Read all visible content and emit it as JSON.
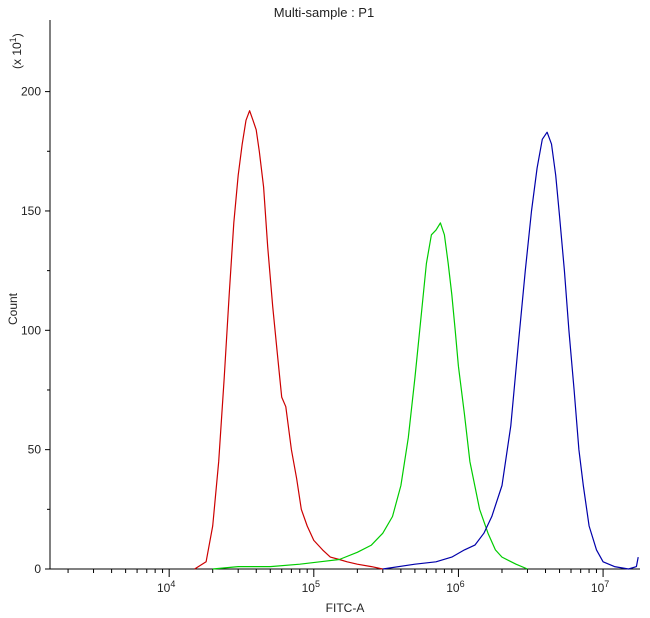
{
  "chart_data": {
    "type": "line",
    "title": "Multi-sample : P1",
    "xlabel": "FITC-A",
    "ylabel": "Count",
    "y_multiplier_label": "(x 10",
    "y_multiplier_exp": "1",
    "y_multiplier_close": ")",
    "x_scale": "log",
    "xlim": [
      1500.0,
      18000000.0
    ],
    "ylim": [
      0,
      230
    ],
    "x_ticks": [
      {
        "value": 10000,
        "base": "10",
        "exp": "4"
      },
      {
        "value": 100000,
        "base": "10",
        "exp": "5"
      },
      {
        "value": 1000000,
        "base": "10",
        "exp": "6"
      },
      {
        "value": 10000000,
        "base": "10",
        "exp": "7"
      }
    ],
    "y_ticks": [
      0,
      50,
      100,
      150,
      200
    ],
    "grid": false,
    "legend": "none",
    "series": [
      {
        "color": "#cc0000",
        "points": [
          [
            15000,
            0
          ],
          [
            18000,
            3
          ],
          [
            20000,
            18
          ],
          [
            22000,
            45
          ],
          [
            24000,
            80
          ],
          [
            26000,
            115
          ],
          [
            28000,
            145
          ],
          [
            30000,
            165
          ],
          [
            32000,
            178
          ],
          [
            34000,
            188
          ],
          [
            36000,
            192
          ],
          [
            38000,
            188
          ],
          [
            40000,
            184
          ],
          [
            42000,
            175
          ],
          [
            45000,
            160
          ],
          [
            48000,
            135
          ],
          [
            52000,
            110
          ],
          [
            56000,
            90
          ],
          [
            60000,
            72
          ],
          [
            64000,
            68
          ],
          [
            70000,
            50
          ],
          [
            76000,
            38
          ],
          [
            82000,
            25
          ],
          [
            90000,
            18
          ],
          [
            100000,
            12
          ],
          [
            115000,
            8
          ],
          [
            130000,
            5
          ],
          [
            150000,
            4
          ],
          [
            170000,
            3
          ],
          [
            200000,
            2
          ],
          [
            250000,
            1
          ],
          [
            300000,
            0
          ]
        ]
      },
      {
        "color": "#00cc00",
        "points": [
          [
            20000,
            0
          ],
          [
            30000,
            1
          ],
          [
            50000,
            1
          ],
          [
            80000,
            2
          ],
          [
            110000,
            3
          ],
          [
            150000,
            4
          ],
          [
            200000,
            7
          ],
          [
            250000,
            10
          ],
          [
            300000,
            15
          ],
          [
            350000,
            22
          ],
          [
            400000,
            35
          ],
          [
            450000,
            55
          ],
          [
            500000,
            80
          ],
          [
            550000,
            105
          ],
          [
            600000,
            128
          ],
          [
            650000,
            140
          ],
          [
            700000,
            142
          ],
          [
            750000,
            145
          ],
          [
            800000,
            140
          ],
          [
            850000,
            128
          ],
          [
            900000,
            115
          ],
          [
            950000,
            100
          ],
          [
            1000000,
            85
          ],
          [
            1100000,
            65
          ],
          [
            1200000,
            45
          ],
          [
            1400000,
            25
          ],
          [
            1600000,
            15
          ],
          [
            1800000,
            8
          ],
          [
            2000000,
            5
          ],
          [
            2500000,
            2
          ],
          [
            3000000,
            0
          ]
        ]
      },
      {
        "color": "#0000aa",
        "points": [
          [
            300000,
            0
          ],
          [
            500000,
            2
          ],
          [
            700000,
            3
          ],
          [
            900000,
            5
          ],
          [
            1100000,
            8
          ],
          [
            1300000,
            10
          ],
          [
            1500000,
            15
          ],
          [
            1700000,
            22
          ],
          [
            2000000,
            35
          ],
          [
            2300000,
            60
          ],
          [
            2600000,
            95
          ],
          [
            2900000,
            125
          ],
          [
            3200000,
            150
          ],
          [
            3500000,
            168
          ],
          [
            3800000,
            180
          ],
          [
            4100000,
            183
          ],
          [
            4400000,
            178
          ],
          [
            4700000,
            165
          ],
          [
            5000000,
            148
          ],
          [
            5400000,
            125
          ],
          [
            5800000,
            100
          ],
          [
            6300000,
            75
          ],
          [
            6800000,
            50
          ],
          [
            7300000,
            35
          ],
          [
            8000000,
            18
          ],
          [
            9000000,
            8
          ],
          [
            10000000,
            3
          ],
          [
            12000000,
            1
          ],
          [
            15000000,
            0
          ],
          [
            17000000,
            1
          ],
          [
            17500000,
            5
          ]
        ]
      }
    ]
  }
}
